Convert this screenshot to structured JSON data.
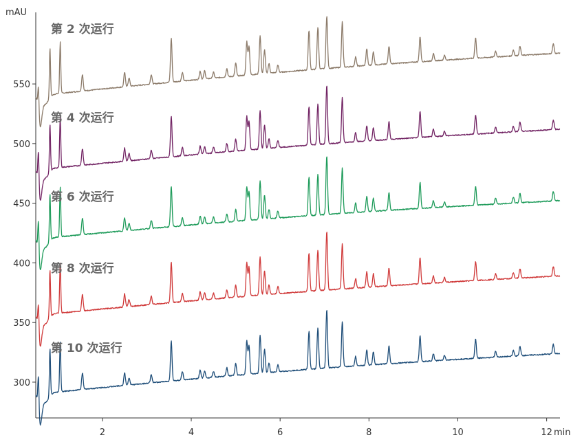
{
  "chart_data": {
    "type": "line",
    "title": "",
    "xlabel": "",
    "ylabel": "",
    "x_unit": "min",
    "y_unit": "mAU",
    "xlim": [
      0.5,
      12.3
    ],
    "ylim": [
      270,
      610
    ],
    "x_ticks": [
      2,
      4,
      6,
      8,
      10,
      12
    ],
    "y_ticks": [
      300,
      350,
      400,
      450,
      500,
      550
    ],
    "grid": false,
    "legend": "none",
    "series": [
      {
        "name": "第 2 次运行",
        "color": "#8C7B6A",
        "baseline_start": 540,
        "baseline_end": 579,
        "peaks": [
          [
            0.56,
            20
          ],
          [
            0.82,
            42
          ],
          [
            1.05,
            43
          ],
          [
            1.55,
            14
          ],
          [
            2.5,
            12
          ],
          [
            2.6,
            7
          ],
          [
            3.1,
            8
          ],
          [
            3.55,
            37
          ],
          [
            3.8,
            7
          ],
          [
            4.2,
            7
          ],
          [
            4.3,
            7
          ],
          [
            4.5,
            5
          ],
          [
            4.8,
            7
          ],
          [
            5.0,
            11
          ],
          [
            5.25,
            28
          ],
          [
            5.3,
            24
          ],
          [
            5.55,
            32
          ],
          [
            5.65,
            20
          ],
          [
            5.75,
            8
          ],
          [
            5.95,
            6
          ],
          [
            6.65,
            33
          ],
          [
            6.85,
            35
          ],
          [
            7.05,
            44
          ],
          [
            7.4,
            38
          ],
          [
            7.7,
            8
          ],
          [
            7.95,
            14
          ],
          [
            8.1,
            11
          ],
          [
            8.45,
            15
          ],
          [
            9.15,
            21
          ],
          [
            9.45,
            6
          ],
          [
            9.7,
            4
          ],
          [
            10.4,
            17
          ],
          [
            10.85,
            5
          ],
          [
            11.25,
            5
          ],
          [
            11.4,
            8
          ],
          [
            12.15,
            8
          ]
        ]
      },
      {
        "name": "第 4 次运行",
        "color": "#722464",
        "baseline_start": 478,
        "baseline_end": 515,
        "peaks": [
          [
            0.56,
            28
          ],
          [
            0.82,
            40
          ],
          [
            1.05,
            42
          ],
          [
            1.55,
            14
          ],
          [
            2.5,
            11
          ],
          [
            2.6,
            6
          ],
          [
            3.1,
            7
          ],
          [
            3.55,
            34
          ],
          [
            3.8,
            7
          ],
          [
            4.2,
            7
          ],
          [
            4.3,
            6
          ],
          [
            4.5,
            5
          ],
          [
            4.8,
            7
          ],
          [
            5.0,
            10
          ],
          [
            5.25,
            28
          ],
          [
            5.3,
            24
          ],
          [
            5.55,
            32
          ],
          [
            5.65,
            20
          ],
          [
            5.75,
            8
          ],
          [
            5.95,
            6
          ],
          [
            6.65,
            32
          ],
          [
            6.85,
            34
          ],
          [
            7.05,
            49
          ],
          [
            7.4,
            38
          ],
          [
            7.7,
            8
          ],
          [
            7.95,
            13
          ],
          [
            8.1,
            11
          ],
          [
            8.45,
            15
          ],
          [
            9.15,
            22
          ],
          [
            9.45,
            6
          ],
          [
            9.7,
            4
          ],
          [
            10.4,
            16
          ],
          [
            10.85,
            5
          ],
          [
            11.25,
            5
          ],
          [
            11.4,
            8
          ],
          [
            12.15,
            8
          ]
        ]
      },
      {
        "name": "第 6 次运行",
        "color": "#1E9B5A",
        "baseline_start": 420,
        "baseline_end": 455,
        "peaks": [
          [
            0.56,
            28
          ],
          [
            0.82,
            40
          ],
          [
            1.05,
            42
          ],
          [
            1.55,
            14
          ],
          [
            2.5,
            11
          ],
          [
            2.6,
            6
          ],
          [
            3.1,
            7
          ],
          [
            3.55,
            34
          ],
          [
            3.8,
            7
          ],
          [
            4.2,
            7
          ],
          [
            4.3,
            6
          ],
          [
            4.5,
            5
          ],
          [
            4.8,
            7
          ],
          [
            5.0,
            10
          ],
          [
            5.25,
            28
          ],
          [
            5.3,
            24
          ],
          [
            5.55,
            32
          ],
          [
            5.65,
            20
          ],
          [
            5.75,
            8
          ],
          [
            5.95,
            6
          ],
          [
            6.65,
            32
          ],
          [
            6.85,
            34
          ],
          [
            7.05,
            49
          ],
          [
            7.4,
            38
          ],
          [
            7.7,
            8
          ],
          [
            7.95,
            13
          ],
          [
            8.1,
            11
          ],
          [
            8.45,
            15
          ],
          [
            9.15,
            22
          ],
          [
            9.45,
            6
          ],
          [
            9.7,
            4
          ],
          [
            10.4,
            16
          ],
          [
            10.85,
            5
          ],
          [
            11.25,
            5
          ],
          [
            11.4,
            8
          ],
          [
            12.15,
            8
          ]
        ]
      },
      {
        "name": "第 8 次运行",
        "color": "#D03A3A",
        "baseline_start": 356,
        "baseline_end": 392,
        "peaks": [
          [
            0.56,
            22
          ],
          [
            0.82,
            40
          ],
          [
            1.05,
            42
          ],
          [
            1.55,
            14
          ],
          [
            2.5,
            11
          ],
          [
            2.6,
            6
          ],
          [
            3.1,
            7
          ],
          [
            3.55,
            34
          ],
          [
            3.8,
            7
          ],
          [
            4.2,
            7
          ],
          [
            4.3,
            6
          ],
          [
            4.5,
            5
          ],
          [
            4.8,
            7
          ],
          [
            5.0,
            10
          ],
          [
            5.25,
            28
          ],
          [
            5.3,
            24
          ],
          [
            5.55,
            32
          ],
          [
            5.65,
            20
          ],
          [
            5.75,
            8
          ],
          [
            5.95,
            6
          ],
          [
            6.65,
            32
          ],
          [
            6.85,
            34
          ],
          [
            7.05,
            49
          ],
          [
            7.4,
            38
          ],
          [
            7.7,
            8
          ],
          [
            7.95,
            13
          ],
          [
            8.1,
            11
          ],
          [
            8.45,
            15
          ],
          [
            9.15,
            22
          ],
          [
            9.45,
            6
          ],
          [
            9.7,
            4
          ],
          [
            10.4,
            16
          ],
          [
            10.85,
            5
          ],
          [
            11.25,
            5
          ],
          [
            11.4,
            8
          ],
          [
            12.15,
            8
          ]
        ]
      },
      {
        "name": "第 10 次运行",
        "color": "#1F4E79",
        "baseline_start": 290,
        "baseline_end": 327,
        "peaks": [
          [
            0.56,
            28
          ],
          [
            0.82,
            40
          ],
          [
            1.05,
            42
          ],
          [
            1.55,
            14
          ],
          [
            2.5,
            11
          ],
          [
            2.6,
            6
          ],
          [
            3.1,
            7
          ],
          [
            3.55,
            34
          ],
          [
            3.8,
            7
          ],
          [
            4.2,
            7
          ],
          [
            4.3,
            6
          ],
          [
            4.5,
            5
          ],
          [
            4.8,
            7
          ],
          [
            5.0,
            10
          ],
          [
            5.25,
            28
          ],
          [
            5.3,
            24
          ],
          [
            5.55,
            32
          ],
          [
            5.65,
            20
          ],
          [
            5.75,
            8
          ],
          [
            5.95,
            6
          ],
          [
            6.65,
            32
          ],
          [
            6.85,
            34
          ],
          [
            7.05,
            49
          ],
          [
            7.4,
            38
          ],
          [
            7.7,
            8
          ],
          [
            7.95,
            13
          ],
          [
            8.1,
            11
          ],
          [
            8.45,
            15
          ],
          [
            9.15,
            22
          ],
          [
            9.45,
            6
          ],
          [
            9.7,
            4
          ],
          [
            10.4,
            16
          ],
          [
            10.85,
            5
          ],
          [
            11.25,
            5
          ],
          [
            11.4,
            8
          ],
          [
            12.15,
            8
          ]
        ]
      }
    ]
  }
}
